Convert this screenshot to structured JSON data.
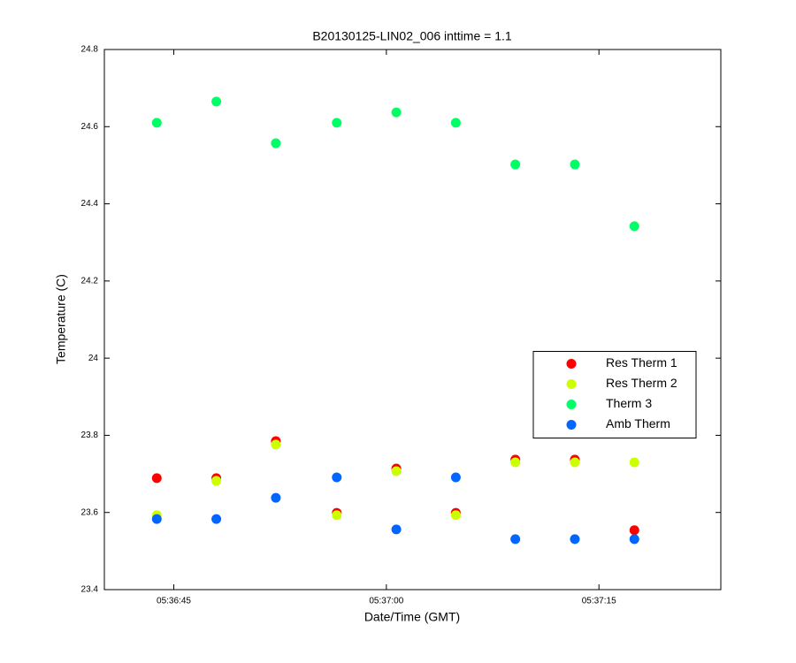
{
  "chart_data": {
    "type": "scatter",
    "title": "B20130125-LIN02_006 inttime = 1.1",
    "x_label": "Date/Time (GMT)",
    "y_label": "Temperature (C)",
    "x": [
      20203.8,
      20208.0,
      20212.2,
      20216.5,
      20220.7,
      20224.9,
      20229.1,
      20233.3,
      20237.5
    ],
    "series": [
      {
        "name": "Res Therm 1",
        "color": "#ff0000",
        "values": [
          23.689,
          23.689,
          23.785,
          23.599,
          23.714,
          23.599,
          23.737,
          23.737,
          23.554
        ]
      },
      {
        "name": "Res Therm 2",
        "color": "#ccff00",
        "values": [
          23.593,
          23.682,
          23.776,
          23.593,
          23.707,
          23.593,
          23.73,
          23.73,
          23.73
        ]
      },
      {
        "name": "Therm 3",
        "color": "#00ff66",
        "values": [
          24.61,
          24.665,
          24.557,
          24.61,
          24.637,
          24.61,
          24.502,
          24.502,
          24.342
        ]
      },
      {
        "name": "Amb Therm",
        "color": "#0066ff",
        "values": [
          23.583,
          23.583,
          23.638,
          23.691,
          23.556,
          23.691,
          23.531,
          23.531,
          23.531
        ]
      }
    ],
    "xlim": [
      20200.1,
      20243.6
    ],
    "xticks": [
      {
        "value": 20205,
        "label": "05:36:45"
      },
      {
        "value": 20220,
        "label": "05:37:00"
      },
      {
        "value": 20235,
        "label": "05:37:15"
      }
    ],
    "ylim": [
      23.4,
      24.8
    ],
    "yticks": [
      23.4,
      23.6,
      23.8,
      24,
      24.2,
      24.4,
      24.6,
      24.8
    ],
    "legend": "east",
    "grid": false
  }
}
